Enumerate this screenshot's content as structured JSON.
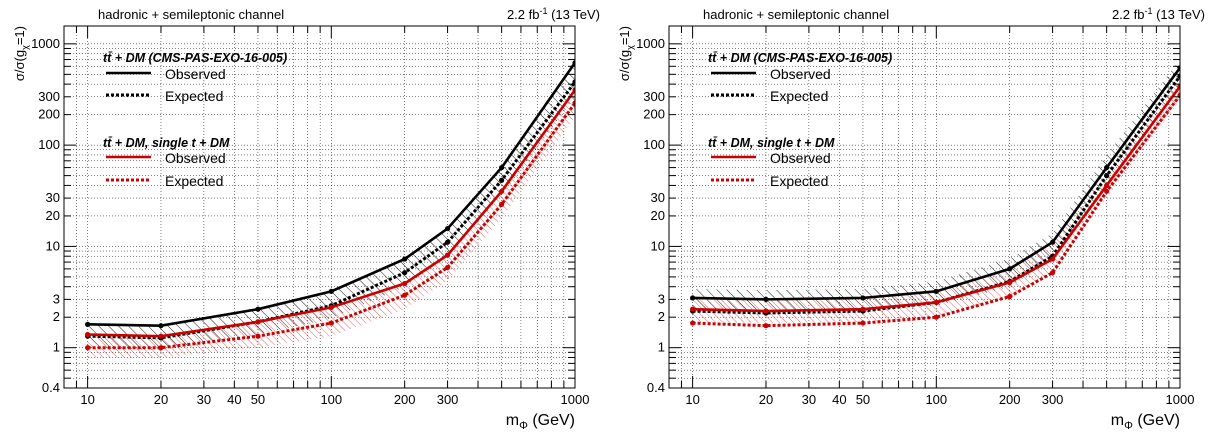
{
  "chart_data": [
    {
      "type": "line",
      "xscale": "log",
      "yscale": "log",
      "xlim": [
        8,
        1000
      ],
      "ylim": [
        0.4,
        1500
      ],
      "header_left": "hadronic + semileptonic channel",
      "lumi": "2.2 fb",
      "lumi_exp": "-1",
      "energy": "(13 TeV)",
      "xlabel": "m",
      "xlabel_sub": "Φ",
      "xlabel_unit": "(GeV)",
      "ylabel": "σ/σ(g",
      "ylabel_sub": "χ",
      "ylabel_end": "=1)",
      "x_ticks": [
        "10",
        "20",
        "30",
        "40",
        "50",
        "100",
        "200",
        "300",
        "1000"
      ],
      "y_ticks": [
        "0.4",
        "1",
        "2",
        "3",
        "10",
        "20",
        "30",
        "100",
        "200",
        "300",
        "1000"
      ],
      "grid": true,
      "legend": {
        "group1_title": "tt̄ + DM (CMS-PAS-EXO-16-005)",
        "group1_entries": [
          "Observed",
          "Expected"
        ],
        "group2_title": "tt̄ + DM, single t + DM",
        "group2_entries": [
          "Observed",
          "Expected"
        ]
      },
      "x": [
        10,
        20,
        50,
        100,
        200,
        300,
        500,
        1000
      ],
      "series": [
        {
          "group": "tt̄ + DM (CMS-PAS-EXO-16-005)",
          "name": "Observed",
          "color": "#000000",
          "style": "solid",
          "values": [
            1.7,
            1.65,
            2.4,
            3.6,
            7.5,
            15,
            60,
            650
          ]
        },
        {
          "group": "tt̄ + DM (CMS-PAS-EXO-16-005)",
          "name": "Expected",
          "color": "#000000",
          "style": "dotted",
          "values": [
            1.3,
            1.25,
            1.8,
            2.6,
            5.5,
            11,
            45,
            420
          ],
          "band": [
            [
              1.0,
              1.7
            ],
            [
              0.95,
              1.65
            ],
            [
              1.35,
              2.5
            ],
            [
              1.95,
              3.6
            ],
            [
              4.0,
              7.8
            ],
            [
              8,
              15.5
            ],
            [
              32,
              64
            ],
            [
              300,
              600
            ]
          ]
        },
        {
          "group": "tt̄ + DM, single t + DM",
          "name": "Observed",
          "color": "#cc0000",
          "style": "solid",
          "values": [
            1.35,
            1.3,
            1.8,
            2.5,
            4.3,
            8.2,
            35,
            350
          ]
        },
        {
          "group": "tt̄ + DM, single t + DM",
          "name": "Expected",
          "color": "#cc0000",
          "style": "dotted",
          "values": [
            1.0,
            1.0,
            1.3,
            1.75,
            3.3,
            6.2,
            26,
            260
          ],
          "band": [
            [
              0.8,
              1.35
            ],
            [
              0.8,
              1.3
            ],
            [
              1.0,
              1.8
            ],
            [
              1.3,
              2.4
            ],
            [
              2.4,
              4.4
            ],
            [
              4.6,
              8.6
            ],
            [
              19,
              35
            ],
            [
              190,
              350
            ]
          ]
        }
      ]
    },
    {
      "type": "line",
      "xscale": "log",
      "yscale": "log",
      "xlim": [
        8,
        1000
      ],
      "ylim": [
        0.4,
        1500
      ],
      "header_left": "hadronic + semileptonic channel",
      "lumi": "2.2 fb",
      "lumi_exp": "-1",
      "energy": "(13 TeV)",
      "xlabel": "m",
      "xlabel_sub": "Φ",
      "xlabel_unit": "(GeV)",
      "ylabel": "σ/σ(g",
      "ylabel_sub": "χ",
      "ylabel_end": "=1)",
      "x_ticks": [
        "10",
        "20",
        "30",
        "40",
        "50",
        "100",
        "200",
        "300",
        "1000"
      ],
      "y_ticks": [
        "0.4",
        "1",
        "2",
        "3",
        "10",
        "20",
        "30",
        "100",
        "200",
        "300",
        "1000"
      ],
      "grid": true,
      "legend": {
        "group1_title": "tt̄ + DM (CMS-PAS-EXO-16-005)",
        "group1_entries": [
          "Observed",
          "Expected"
        ],
        "group2_title": "tt̄ + DM, single t + DM",
        "group2_entries": [
          "Observed",
          "Expected"
        ]
      },
      "x": [
        10,
        20,
        50,
        100,
        200,
        300,
        500,
        1000
      ],
      "series": [
        {
          "group": "tt̄ + DM (CMS-PAS-EXO-16-005)",
          "name": "Observed",
          "color": "#000000",
          "style": "solid",
          "values": [
            3.1,
            3.0,
            3.1,
            3.6,
            6.0,
            11,
            60,
            580
          ]
        },
        {
          "group": "tt̄ + DM (CMS-PAS-EXO-16-005)",
          "name": "Expected",
          "color": "#000000",
          "style": "dotted",
          "values": [
            2.3,
            2.2,
            2.3,
            2.8,
            4.5,
            8,
            50,
            480
          ],
          "band": [
            [
              2.3,
              3.8
            ],
            [
              2.2,
              3.7
            ],
            [
              2.3,
              3.8
            ],
            [
              2.6,
              4.5
            ],
            [
              4.0,
              7.6
            ],
            [
              7.5,
              13.5
            ],
            [
              42,
              80
            ],
            [
              380,
              700
            ]
          ]
        },
        {
          "group": "tt̄ + DM, single t + DM",
          "name": "Observed",
          "color": "#cc0000",
          "style": "solid",
          "values": [
            2.4,
            2.3,
            2.4,
            2.8,
            4.4,
            7.5,
            40,
            380
          ]
        },
        {
          "group": "tt̄ + DM, single t + DM",
          "name": "Expected",
          "color": "#cc0000",
          "style": "dotted",
          "values": [
            1.75,
            1.65,
            1.75,
            2.0,
            3.2,
            5.5,
            35,
            310
          ],
          "band": [
            [
              1.8,
              3.2
            ],
            [
              1.75,
              3.0
            ],
            [
              1.8,
              3.1
            ],
            [
              2.0,
              3.5
            ],
            [
              3.2,
              5.8
            ],
            [
              5.6,
              10.5
            ],
            [
              30,
              52
            ],
            [
              280,
              450
            ]
          ]
        }
      ]
    }
  ]
}
